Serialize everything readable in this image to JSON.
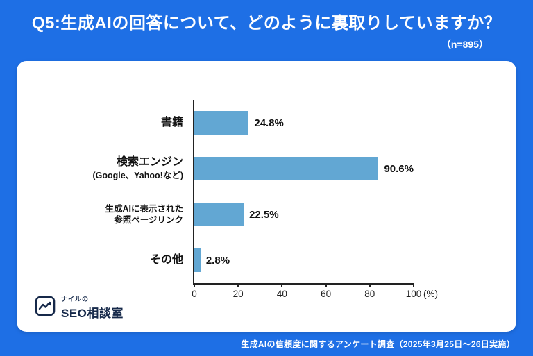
{
  "header": {
    "title": "Q5:生成AIの回答について、どのように裏取りしていますか？",
    "sample_size": "（n=895）"
  },
  "chart_data": {
    "type": "bar",
    "orientation": "horizontal",
    "title": "Q5:生成AIの回答について、どのように裏取りしていますか？",
    "sample_size": "n=895",
    "categories": [
      "書籍",
      "検索エンジン (Google、Yahoo!など)",
      "生成AIに表示された参照ページリンク",
      "その他"
    ],
    "values": [
      24.8,
      90.6,
      22.5,
      2.8
    ],
    "value_labels": [
      "24.8%",
      "90.6%",
      "22.5%",
      "2.8%"
    ],
    "label_lines": [
      [
        {
          "text": "書籍",
          "small": false
        }
      ],
      [
        {
          "text": "検索エンジン",
          "small": false
        },
        {
          "text": "(Google、Yahoo!など)",
          "small": true
        }
      ],
      [
        {
          "text": "生成AIに表示された",
          "small": true
        },
        {
          "text": "参照ページリンク",
          "small": true
        }
      ],
      [
        {
          "text": "その他",
          "small": false
        }
      ]
    ],
    "xlim": [
      0,
      100
    ],
    "ticks": [
      0,
      20,
      40,
      60,
      80,
      100
    ],
    "x_unit": "(%)",
    "xlabel": "(%)",
    "ylabel": "",
    "grid": false,
    "legend": "none",
    "bar_color": "#62a7d3",
    "background_color": "#1e6fe5",
    "card_color": "#ffffff"
  },
  "logo": {
    "line1": "ナイルの",
    "line2": "SEO相談室"
  },
  "footer": {
    "note": "生成AIの信頼度に関するアンケート調査（2025年3月25日〜26日実施）"
  }
}
